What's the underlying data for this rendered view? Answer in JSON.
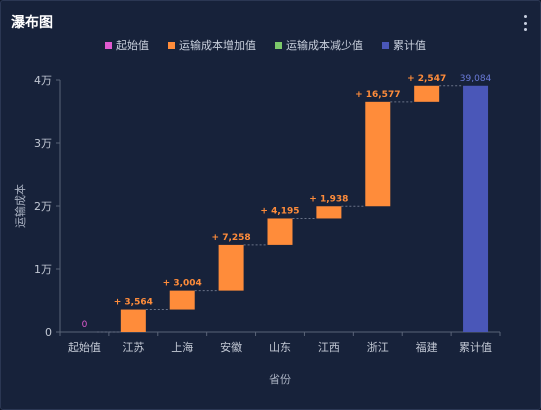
{
  "card": {
    "title": "瀑布图"
  },
  "chart_data": {
    "type": "bar",
    "subtype": "waterfall",
    "title": "瀑布图",
    "xlabel": "省份",
    "ylabel": "运输成本",
    "ylim": [
      0,
      40000
    ],
    "yticks": [
      0,
      10000,
      20000,
      30000,
      40000
    ],
    "ytick_labels": [
      "0",
      "1万",
      "2万",
      "3万",
      "4万"
    ],
    "categories": [
      "起始值",
      "江苏",
      "上海",
      "安徽",
      "山东",
      "江西",
      "浙江",
      "福建",
      "累计值"
    ],
    "legend": [
      "起始值",
      "运输成本增加值",
      "运输成本减少值",
      "累计值"
    ],
    "legend_position": "top",
    "grid": false,
    "colors": {
      "start": "#e05ad0",
      "increase": "#ff8c3a",
      "decrease": "#7cc86a",
      "total": "#4a57b8"
    },
    "bars": [
      {
        "category": "起始值",
        "kind": "start",
        "base": 0,
        "value": 0,
        "label": "0"
      },
      {
        "category": "江苏",
        "kind": "increase",
        "base": 0,
        "value": 3564,
        "label": "+ 3,564"
      },
      {
        "category": "上海",
        "kind": "increase",
        "base": 3564,
        "value": 3004,
        "label": "+ 3,004"
      },
      {
        "category": "安徽",
        "kind": "increase",
        "base": 6568,
        "value": 7258,
        "label": "+ 7,258"
      },
      {
        "category": "山东",
        "kind": "increase",
        "base": 13826,
        "value": 4195,
        "label": "+ 4,195"
      },
      {
        "category": "江西",
        "kind": "increase",
        "base": 18021,
        "value": 1938,
        "label": "+ 1,938"
      },
      {
        "category": "浙江",
        "kind": "increase",
        "base": 19959,
        "value": 16577,
        "label": "+ 16,577"
      },
      {
        "category": "福建",
        "kind": "increase",
        "base": 36536,
        "value": 2547,
        "label": "+ 2,547"
      },
      {
        "category": "累计值",
        "kind": "total",
        "base": 0,
        "value": 39084,
        "label": "39,084"
      }
    ]
  }
}
